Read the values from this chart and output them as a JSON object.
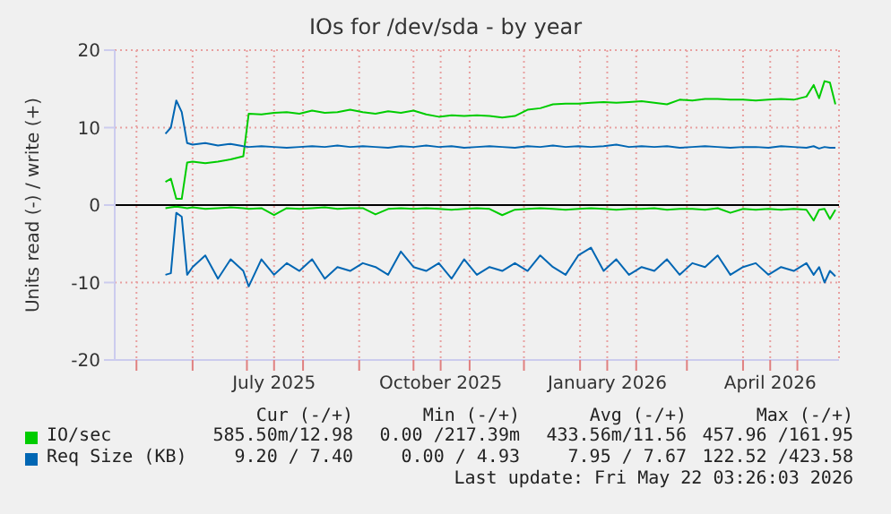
{
  "chart_data": {
    "type": "line",
    "title": "IOs for /dev/sda - by year",
    "ylabel": "Units read (-) / write (+)",
    "x": [
      "2025-05-17",
      "2025-05-20",
      "2025-05-23",
      "2025-05-26",
      "2025-05-29",
      "2025-06-01",
      "2025-06-08",
      "2025-06-15",
      "2025-06-22",
      "2025-06-29",
      "2025-07-02",
      "2025-07-09",
      "2025-07-16",
      "2025-07-23",
      "2025-07-30",
      "2025-08-06",
      "2025-08-13",
      "2025-08-20",
      "2025-08-27",
      "2025-09-03",
      "2025-09-10",
      "2025-09-17",
      "2025-09-24",
      "2025-10-01",
      "2025-10-08",
      "2025-10-15",
      "2025-10-22",
      "2025-10-29",
      "2025-11-05",
      "2025-11-12",
      "2025-11-19",
      "2025-11-26",
      "2025-12-03",
      "2025-12-10",
      "2025-12-17",
      "2025-12-24",
      "2025-12-31",
      "2026-01-07",
      "2026-01-14",
      "2026-01-21",
      "2026-01-28",
      "2026-02-04",
      "2026-02-11",
      "2026-02-18",
      "2026-02-25",
      "2026-03-04",
      "2026-03-11",
      "2026-03-18",
      "2026-03-25",
      "2026-04-01",
      "2026-04-08",
      "2026-04-15",
      "2026-04-22",
      "2026-04-29",
      "2026-05-06",
      "2026-05-10",
      "2026-05-13",
      "2026-05-16",
      "2026-05-19",
      "2026-05-22"
    ],
    "series": [
      {
        "name": "IO/sec",
        "color": "#00cc00",
        "values": [
          3.0,
          3.4,
          0.8,
          0.8,
          5.5,
          5.6,
          5.4,
          5.6,
          5.9,
          6.3,
          11.8,
          11.7,
          11.9,
          12.0,
          11.8,
          12.2,
          11.9,
          12.0,
          12.3,
          12.0,
          11.8,
          12.1,
          11.9,
          12.2,
          11.7,
          11.4,
          11.6,
          11.5,
          11.6,
          11.5,
          11.3,
          11.5,
          12.3,
          12.5,
          13.0,
          13.1,
          13.1,
          13.2,
          13.3,
          13.2,
          13.3,
          13.4,
          13.2,
          13.0,
          13.6,
          13.5,
          13.7,
          13.7,
          13.6,
          13.6,
          13.5,
          13.6,
          13.7,
          13.6,
          14.0,
          15.5,
          13.8,
          16.0,
          15.8,
          13.0
        ]
      },
      {
        "name": "Req Size (KB)",
        "color": "#0066b3",
        "values": [
          9.2,
          10.0,
          13.5,
          12.0,
          8.0,
          7.8,
          8.0,
          7.7,
          7.9,
          7.6,
          7.5,
          7.6,
          7.5,
          7.4,
          7.5,
          7.6,
          7.5,
          7.7,
          7.5,
          7.6,
          7.5,
          7.4,
          7.6,
          7.5,
          7.7,
          7.5,
          7.6,
          7.4,
          7.5,
          7.6,
          7.5,
          7.4,
          7.6,
          7.5,
          7.7,
          7.5,
          7.6,
          7.5,
          7.6,
          7.8,
          7.5,
          7.6,
          7.5,
          7.6,
          7.4,
          7.5,
          7.6,
          7.5,
          7.4,
          7.5,
          7.5,
          7.4,
          7.6,
          7.5,
          7.4,
          7.6,
          7.3,
          7.5,
          7.4,
          7.4
        ]
      },
      {
        "color": "#00cc00",
        "values": [
          -0.4,
          -0.3,
          -0.2,
          -0.3,
          -0.4,
          -0.3,
          -0.5,
          -0.4,
          -0.3,
          -0.4,
          -0.5,
          -0.4,
          -1.3,
          -0.4,
          -0.5,
          -0.4,
          -0.3,
          -0.5,
          -0.4,
          -0.4,
          -1.2,
          -0.5,
          -0.4,
          -0.5,
          -0.4,
          -0.5,
          -0.6,
          -0.5,
          -0.4,
          -0.5,
          -1.3,
          -0.6,
          -0.5,
          -0.4,
          -0.5,
          -0.6,
          -0.5,
          -0.4,
          -0.5,
          -0.6,
          -0.5,
          -0.5,
          -0.4,
          -0.6,
          -0.5,
          -0.5,
          -0.6,
          -0.4,
          -1.0,
          -0.5,
          -0.6,
          -0.5,
          -0.6,
          -0.5,
          -0.6,
          -2.0,
          -0.6,
          -0.5,
          -1.8,
          -0.6
        ]
      },
      {
        "color": "#0066b3",
        "values": [
          -9.0,
          -8.8,
          -1.0,
          -1.5,
          -9.0,
          -8.0,
          -6.5,
          -9.5,
          -7.0,
          -8.5,
          -10.5,
          -7.0,
          -9.0,
          -7.5,
          -8.5,
          -7.0,
          -9.5,
          -8.0,
          -8.5,
          -7.5,
          -8.0,
          -9.0,
          -6.0,
          -8.0,
          -8.5,
          -7.5,
          -9.5,
          -7.0,
          -9.0,
          -8.0,
          -8.5,
          -7.5,
          -8.5,
          -6.5,
          -8.0,
          -9.0,
          -6.5,
          -5.5,
          -8.5,
          -7.0,
          -9.0,
          -8.0,
          -8.5,
          -7.0,
          -9.0,
          -7.5,
          -8.0,
          -6.5,
          -9.0,
          -8.0,
          -7.5,
          -9.0,
          -8.0,
          -8.5,
          -7.5,
          -9.0,
          -8.0,
          -10.0,
          -8.5,
          -9.2
        ]
      }
    ],
    "xlim": [
      "2025-04-19",
      "2026-05-24"
    ],
    "xticks": [
      {
        "value": "2025-05-01",
        "label": null
      },
      {
        "value": "2025-06-01",
        "label": null
      },
      {
        "value": "2025-07-01",
        "label": null
      },
      {
        "value": "2025-07-16",
        "label": "July 2025"
      },
      {
        "value": "2025-08-01",
        "label": null
      },
      {
        "value": "2025-09-01",
        "label": null
      },
      {
        "value": "2025-10-01",
        "label": null
      },
      {
        "value": "2025-10-16",
        "label": "October 2025"
      },
      {
        "value": "2025-11-01",
        "label": null
      },
      {
        "value": "2025-12-01",
        "label": null
      },
      {
        "value": "2026-01-01",
        "label": null
      },
      {
        "value": "2026-01-16",
        "label": "January 2026"
      },
      {
        "value": "2026-02-01",
        "label": null
      },
      {
        "value": "2026-03-01",
        "label": null
      },
      {
        "value": "2026-04-01",
        "label": null
      },
      {
        "value": "2026-04-16",
        "label": "April 2026"
      },
      {
        "value": "2026-05-01",
        "label": null
      }
    ],
    "ylim": [
      -20,
      20
    ],
    "yticks": [
      -20,
      -10,
      0,
      10,
      20
    ],
    "ref_lines": [
      {
        "axis": "y",
        "value": 0,
        "color": "#000000"
      }
    ],
    "grid": true,
    "legend": "bottom",
    "marker": "none",
    "line_style": "solid",
    "annotations": [
      "Cur (-/+)",
      "Min (-/+)",
      "Avg (-/+)",
      "Max (-/+)",
      "585.50m/12.98",
      "0.00 /217.39m",
      "433.56m/11.56",
      "457.96 /161.95",
      "9.20 / 7.40",
      "0.00 / 4.93",
      "7.95 / 7.67",
      "122.52 /423.58",
      "Last update: Fri May 22 03:26:03 2026"
    ]
  }
}
